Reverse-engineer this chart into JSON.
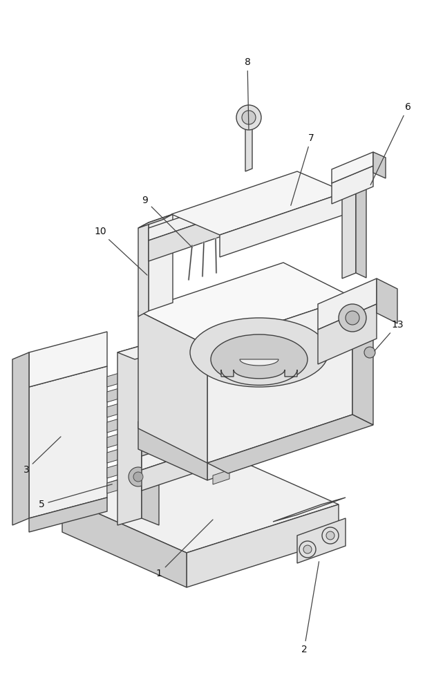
{
  "background_color": "#ffffff",
  "line_color": "#404040",
  "line_width": 1.0,
  "label_fontsize": 10,
  "label_color": "#111111",
  "face_light": "#f0f0f0",
  "face_mid": "#e0e0e0",
  "face_dark": "#cccccc",
  "face_darker": "#bbbbbb"
}
